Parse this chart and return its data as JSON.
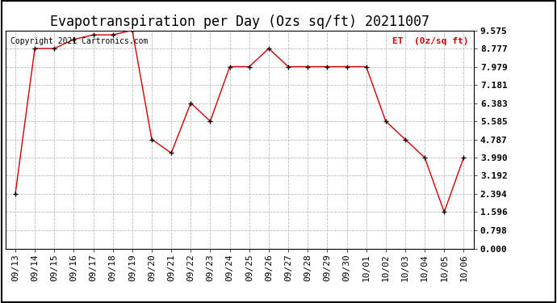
{
  "title": "Evapotranspiration per Day (Ozs sq/ft) 20211007",
  "legend_label": "ET  (0z/sq ft)",
  "copyright_text": "Copyright 2021 Cartronics.com",
  "x_labels": [
    "09/13",
    "09/14",
    "09/15",
    "09/16",
    "09/17",
    "09/18",
    "09/19",
    "09/20",
    "09/21",
    "09/22",
    "09/23",
    "09/24",
    "09/25",
    "09/26",
    "09/27",
    "09/28",
    "09/29",
    "09/30",
    "10/01",
    "10/02",
    "10/03",
    "10/04",
    "10/05",
    "10/06"
  ],
  "y_values": [
    2.394,
    8.777,
    8.777,
    9.177,
    9.375,
    9.375,
    9.575,
    4.787,
    4.19,
    6.383,
    5.585,
    7.979,
    7.979,
    8.777,
    7.979,
    7.979,
    7.979,
    7.979,
    7.979,
    5.585,
    4.787,
    3.99,
    1.596,
    3.99
  ],
  "yticks": [
    0.0,
    0.798,
    1.596,
    2.394,
    3.192,
    3.99,
    4.787,
    5.585,
    6.383,
    7.181,
    7.979,
    8.777,
    9.575
  ],
  "ylim": [
    0.0,
    9.575
  ],
  "line_color": "#cc0000",
  "marker_color": "#000000",
  "grid_color": "#bbbbbb",
  "background_color": "#ffffff",
  "title_fontsize": 12,
  "tick_fontsize": 8,
  "copyright_fontsize": 7,
  "legend_fontsize": 8,
  "legend_color": "#cc0000",
  "border_color": "#000000"
}
